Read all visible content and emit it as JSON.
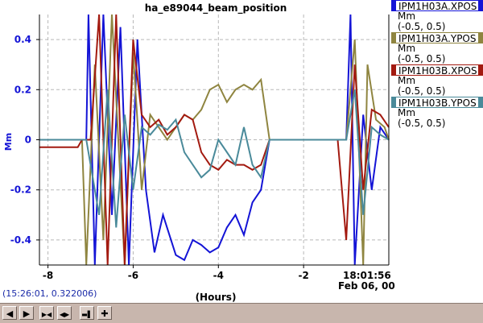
{
  "title": "ha_e89044_beam_position",
  "coords_readout": "(15:26:01, 0.322006)",
  "xlabel": "(Hours)",
  "ylabel": "Mm",
  "timestamp": {
    "time": "18:01:56",
    "date": "Feb 06, 00"
  },
  "legend": [
    {
      "name": "IPM1H03A.XPOS",
      "unit": "Mm",
      "range": "(-0.5, 0.5)",
      "color": "#1414d6"
    },
    {
      "name": "IPM1H03A.YPOS",
      "unit": "Mm",
      "range": "(-0.5, 0.5)",
      "color": "#8f8540"
    },
    {
      "name": "IPM1H03B.XPOS",
      "unit": "Mm",
      "range": "(-0.5, 0.5)",
      "color": "#a31a10"
    },
    {
      "name": "IPM1H03B.YPOS",
      "unit": "Mm",
      "range": "(-0.5, 0.5)",
      "color": "#4a8a9a"
    }
  ],
  "toolbar": [
    {
      "name": "pan-left-button",
      "icon": "arrow-left-icon",
      "glyph": "◀"
    },
    {
      "name": "pan-right-button",
      "icon": "arrow-right-icon",
      "glyph": "▶"
    },
    {
      "name": "zoom-in-x-button",
      "icon": "zoom-in-icon",
      "glyph": "▶◀"
    },
    {
      "name": "zoom-out-x-button",
      "icon": "zoom-out-icon",
      "glyph": "◀▶"
    },
    {
      "name": "jump-end-button",
      "icon": "jump-end-icon",
      "glyph": "▬▌"
    },
    {
      "name": "add-button",
      "icon": "plus-icon",
      "glyph": "✚"
    }
  ],
  "chart_data": {
    "type": "line",
    "title": "ha_e89044_beam_position",
    "xlabel": "(Hours)",
    "ylabel": "Mm",
    "xlim": [
      -8.2,
      0
    ],
    "ylim": [
      -0.5,
      0.5
    ],
    "x_ticks": [
      "-8",
      "-6",
      "-4",
      "-2"
    ],
    "y_ticks": [
      "0.4",
      "0.2",
      "0",
      "-0.2",
      "-0.4"
    ],
    "grid": true,
    "series": [
      {
        "name": "IPM1H03A.XPOS",
        "color": "#1414d6",
        "x": [
          -8.2,
          -7.1,
          -7.05,
          -6.9,
          -6.7,
          -6.5,
          -6.3,
          -6.1,
          -5.9,
          -5.7,
          -5.5,
          -5.3,
          -5.0,
          -4.8,
          -4.6,
          -4.4,
          -4.2,
          -4.0,
          -3.8,
          -3.6,
          -3.4,
          -3.2,
          -3.0,
          -2.8,
          -2.0,
          -1.0,
          -0.9,
          -0.8,
          -0.6,
          -0.4,
          -0.2,
          0
        ],
        "values": [
          0,
          0,
          0.5,
          -0.5,
          0.5,
          -0.3,
          0.45,
          -0.5,
          0.4,
          -0.2,
          -0.45,
          -0.3,
          -0.46,
          -0.48,
          -0.4,
          -0.42,
          -0.45,
          -0.43,
          -0.35,
          -0.3,
          -0.38,
          -0.25,
          -0.2,
          0,
          0,
          0,
          0.5,
          -0.5,
          0.1,
          -0.2,
          0.05,
          0
        ]
      },
      {
        "name": "IPM1H03A.YPOS",
        "color": "#8f8540",
        "x": [
          -8.2,
          -7.2,
          -7.1,
          -6.9,
          -6.7,
          -6.5,
          -6.2,
          -6.0,
          -5.8,
          -5.6,
          -5.4,
          -5.2,
          -5.0,
          -4.8,
          -4.6,
          -4.4,
          -4.2,
          -4.0,
          -3.8,
          -3.6,
          -3.4,
          -3.2,
          -3.0,
          -2.8,
          -1.0,
          -0.8,
          -0.6,
          -0.5,
          -0.3,
          -0.1,
          0
        ],
        "values": [
          0,
          0,
          -0.5,
          0.3,
          -0.4,
          0.5,
          -0.5,
          0.35,
          -0.2,
          0.1,
          0.05,
          0.0,
          0.05,
          0.1,
          0.08,
          0.12,
          0.2,
          0.22,
          0.15,
          0.2,
          0.22,
          0.2,
          0.24,
          0,
          0,
          0.4,
          -0.5,
          0.3,
          0.08,
          0.05,
          0
        ]
      },
      {
        "name": "IPM1H03B.XPOS",
        "color": "#a31a10",
        "x": [
          -8.2,
          -7.3,
          -7.2,
          -7.0,
          -6.8,
          -6.6,
          -6.4,
          -6.2,
          -6.0,
          -5.8,
          -5.6,
          -5.4,
          -5.2,
          -5.0,
          -4.8,
          -4.6,
          -4.4,
          -4.2,
          -4.0,
          -3.8,
          -3.6,
          -3.4,
          -3.2,
          -3.0,
          -2.8,
          -1.2,
          -1.0,
          -0.8,
          -0.6,
          -0.4,
          -0.2,
          0
        ],
        "values": [
          -0.03,
          -0.03,
          0,
          0,
          0.5,
          -0.5,
          0.5,
          -0.5,
          0.4,
          0.1,
          0.05,
          0.08,
          0.02,
          0.05,
          0.1,
          0.08,
          -0.05,
          -0.1,
          -0.12,
          -0.08,
          -0.1,
          -0.1,
          -0.12,
          -0.1,
          0,
          0,
          -0.4,
          0.3,
          -0.2,
          0.12,
          0.1,
          0.05
        ]
      },
      {
        "name": "IPM1H03B.YPOS",
        "color": "#4a8a9a",
        "x": [
          -8.2,
          -7.1,
          -7.0,
          -6.8,
          -6.6,
          -6.4,
          -6.2,
          -6.0,
          -5.8,
          -5.6,
          -5.4,
          -5.2,
          -5.0,
          -4.8,
          -4.6,
          -4.4,
          -4.2,
          -4.0,
          -3.8,
          -3.6,
          -3.4,
          -3.2,
          -3.0,
          -2.8,
          -1.0,
          -0.8,
          -0.6,
          -0.4,
          -0.2,
          0
        ],
        "values": [
          0,
          0,
          -0.1,
          -0.3,
          0.2,
          -0.35,
          0.1,
          -0.2,
          0.05,
          0.02,
          0.06,
          0.04,
          0.08,
          -0.05,
          -0.1,
          -0.15,
          -0.12,
          0.0,
          -0.05,
          -0.1,
          0.05,
          -0.1,
          -0.15,
          0,
          0,
          0.2,
          -0.3,
          0.05,
          0.02,
          0
        ]
      }
    ]
  }
}
